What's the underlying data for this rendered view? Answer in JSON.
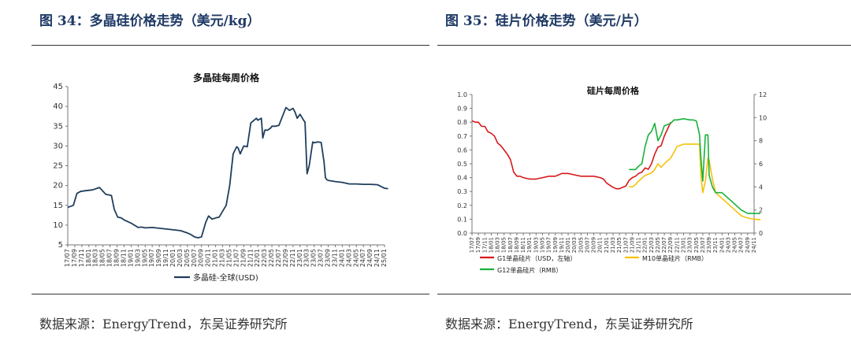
{
  "left": {
    "figure_title": "图 34：多晶硅价格走势（美元/kg）",
    "source": "数据来源：EnergyTrend，东吴证券研究所"
  },
  "right": {
    "figure_title": "图 35：硅片价格走势（美元/片）",
    "source": "数据来源：EnergyTrend，东吴证券研究所"
  },
  "colors": {
    "polysilicon": "#1f3e5c",
    "g1": "#d7191c",
    "m10": "#f5c20b",
    "g12": "#19b23b",
    "title_blue": "#1f3a66"
  },
  "chart_data": [
    {
      "type": "line",
      "title": "多晶硅每周价格",
      "ylim": [
        5,
        45
      ],
      "yticks": [
        "5",
        "10",
        "15",
        "20",
        "25",
        "30",
        "35",
        "40",
        "45"
      ],
      "xticks": [
        "17/07",
        "17/09",
        "17/11",
        "18/01",
        "18/03",
        "18/05",
        "18/07",
        "18/09",
        "18/11",
        "19/01",
        "19/03",
        "19/05",
        "19/07",
        "19/09",
        "19/11",
        "20/01",
        "20/03",
        "20/05",
        "20/07",
        "20/09",
        "20/11",
        "21/01",
        "21/03",
        "21/05",
        "21/07",
        "21/09",
        "21/11",
        "22/01",
        "22/03",
        "22/05",
        "22/07",
        "22/09",
        "22/11",
        "23/01",
        "23/03",
        "23/05",
        "23/07",
        "23/09",
        "23/11",
        "24/01",
        "24/03",
        "24/05",
        "24/07",
        "24/09",
        "24/11",
        "25/01"
      ],
      "legend": "bottom",
      "grid": false,
      "series": [
        {
          "name": "多晶硅-全球(USD)",
          "color": "#1f3e5c",
          "x": [
            0,
            0.8,
            1.3,
            1.8,
            2.5,
            3.5,
            4.5,
            5.4,
            6.2,
            6.6,
            7.1,
            7.6,
            8,
            9,
            10,
            10.5,
            11,
            12,
            13,
            14,
            15,
            16,
            17,
            17.5,
            18,
            18.5,
            19,
            19.6,
            20,
            20.5,
            21,
            21.5,
            22,
            22.5,
            23,
            23.5,
            24,
            24.2,
            24.5,
            25,
            25.5,
            26,
            26.8,
            27,
            27.5,
            27.7,
            28,
            28.4,
            28.8,
            29,
            29.5,
            30,
            30.5,
            31,
            31.5,
            32,
            32.3,
            32.6,
            33,
            33.5,
            33.7,
            34,
            34.3,
            34.8,
            35,
            35.5,
            36,
            36.4,
            36.6,
            36.8,
            37,
            38,
            39,
            40,
            41,
            42,
            43,
            44,
            45,
            45.5
          ],
          "values": [
            14.5,
            15,
            18,
            18.5,
            18.7,
            18.9,
            19.5,
            17.8,
            17.5,
            14,
            12,
            11.8,
            11.3,
            10.5,
            9.4,
            9.5,
            9.3,
            9.4,
            9.2,
            9,
            8.8,
            8.6,
            8,
            7.6,
            7,
            6.8,
            7,
            10.7,
            12.3,
            11.5,
            11.8,
            12,
            13.5,
            15,
            20,
            28,
            29.8,
            29.5,
            28,
            30,
            29.8,
            35.8,
            37,
            36.5,
            37,
            32,
            34,
            34,
            34.5,
            35,
            35,
            35.2,
            37.5,
            39.7,
            39,
            39.5,
            38.5,
            37,
            38,
            36.5,
            36,
            23,
            25,
            31,
            30.8,
            31,
            30.9,
            26,
            22,
            21.5,
            21.3,
            21,
            20.8,
            20.4,
            20.4,
            20.3,
            20.3,
            20.2,
            19.3,
            19.2
          ]
        }
      ]
    },
    {
      "type": "line",
      "title": "硅片每周价格",
      "ylim": [
        0,
        1.0
      ],
      "yticks": [
        "0.0",
        "0.1",
        "0.2",
        "0.3",
        "0.4",
        "0.5",
        "0.6",
        "0.7",
        "0.8",
        "0.9",
        "1.0"
      ],
      "y2lim": [
        0,
        12
      ],
      "y2ticks": [
        "0",
        "2",
        "4",
        "6",
        "8",
        "10",
        "12"
      ],
      "xticks": [
        "17/07",
        "17/09",
        "17/11",
        "18/01",
        "18/03",
        "18/05",
        "18/07",
        "18/09",
        "18/11",
        "19/01",
        "19/03",
        "19/05",
        "19/07",
        "19/09",
        "19/11",
        "20/01",
        "20/03",
        "20/05",
        "20/07",
        "20/09",
        "20/11",
        "21/01",
        "21/03",
        "21/05",
        "21/07",
        "21/09",
        "21/11",
        "22/01",
        "22/03",
        "22/05",
        "22/07",
        "22/09",
        "22/11",
        "23/01",
        "23/03",
        "23/05",
        "23/07",
        "23/09",
        "23/11",
        "24/01",
        "24/03",
        "24/05",
        "24/07",
        "24/09",
        "24/11"
      ],
      "legend": "bottom",
      "grid": false,
      "series": [
        {
          "name": "G1单晶硅片（USD，左轴）",
          "axis": "left",
          "color": "#d7191c",
          "x": [
            0,
            0.5,
            1,
            1.5,
            2,
            2.5,
            3,
            3.5,
            4,
            4.5,
            5,
            5.5,
            6,
            6.5,
            7,
            7.5,
            8,
            9,
            10,
            11,
            12,
            13,
            13.5,
            14,
            15,
            16,
            17,
            18,
            19,
            20,
            20.5,
            21,
            22,
            22.5,
            23,
            23.5,
            24,
            24.5,
            25,
            25.5,
            26,
            26.5,
            27,
            27.5,
            28,
            28.5,
            29,
            29.5,
            30,
            30.5,
            31
          ],
          "values": [
            0.81,
            0.8,
            0.8,
            0.77,
            0.77,
            0.73,
            0.72,
            0.7,
            0.65,
            0.63,
            0.6,
            0.57,
            0.53,
            0.44,
            0.41,
            0.41,
            0.4,
            0.39,
            0.39,
            0.4,
            0.41,
            0.41,
            0.42,
            0.43,
            0.43,
            0.42,
            0.41,
            0.41,
            0.41,
            0.4,
            0.39,
            0.36,
            0.33,
            0.32,
            0.32,
            0.33,
            0.34,
            0.38,
            0.4,
            0.41,
            0.43,
            0.44,
            0.47,
            0.46,
            0.5,
            0.57,
            0.62,
            0.63,
            0.7,
            0.75,
            0.8
          ]
        },
        {
          "name": "M10单晶硅片（RMB）",
          "axis": "right",
          "color": "#f5c20b",
          "x": [
            24.5,
            25,
            25.5,
            26,
            27,
            28,
            28.5,
            29,
            29.5,
            30,
            31,
            31.5,
            32,
            33,
            34,
            34.5,
            35,
            35.5,
            35.7,
            36,
            36.4,
            36.8,
            37,
            37.5,
            38,
            39,
            40,
            41,
            42,
            43,
            44,
            45
          ],
          "values": [
            4,
            4,
            4.2,
            4.5,
            5,
            5.2,
            5.5,
            6,
            5.7,
            6,
            6.5,
            7,
            7.5,
            7.7,
            7.7,
            7.7,
            7.7,
            7.7,
            5,
            3.5,
            4.5,
            6.5,
            6.3,
            4.7,
            3.5,
            3,
            2.5,
            2,
            1.5,
            1.3,
            1.2,
            1.15
          ]
        },
        {
          "name": "G12单晶硅片（RMB）",
          "axis": "right",
          "color": "#19b23b",
          "x": [
            24.5,
            25.5,
            26,
            26.5,
            27,
            27.5,
            28,
            28.5,
            29,
            29.5,
            30,
            31,
            31.5,
            32,
            33,
            34,
            34.5,
            35,
            35.5,
            35.7,
            36,
            36.4,
            36.8,
            37,
            37.5,
            38,
            39,
            40,
            41,
            42,
            43,
            44,
            45
          ],
          "values": [
            5.5,
            5.5,
            5.8,
            6,
            7.5,
            8.5,
            8.8,
            9.5,
            8,
            8.5,
            9.3,
            9.5,
            9.8,
            9.8,
            9.9,
            9.8,
            9.8,
            9.7,
            8.5,
            6.5,
            4.5,
            8.5,
            8.5,
            5,
            4,
            3.5,
            3.5,
            3,
            2.5,
            2,
            1.7,
            1.7,
            1.7
          ]
        }
      ]
    }
  ]
}
